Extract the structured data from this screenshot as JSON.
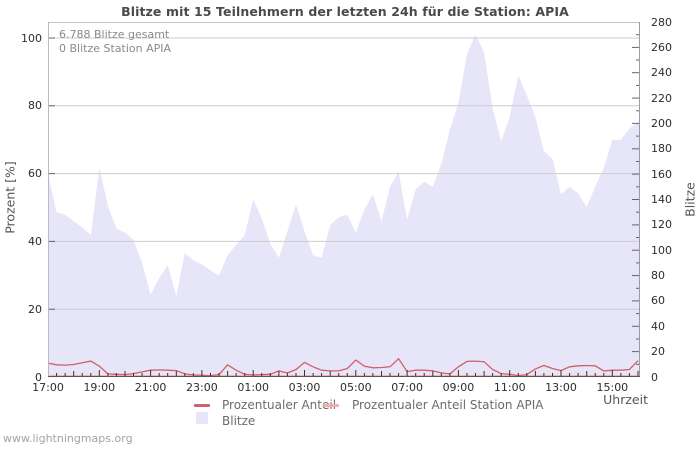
{
  "page": {
    "title": "Blitze mit 15 Teilnehmern der letzten 24h für die Station: APIA",
    "watermark": "www.lightningmaps.org"
  },
  "chart_data": {
    "type": "area",
    "title": "Blitze mit 15 Teilnehmern der letzten 24h für die Station: APIA",
    "annotations": [
      "6.788 Blitze gesamt",
      "0 Blitze Station APIA"
    ],
    "x_axis": {
      "label": "Uhrzeit",
      "start": "17:00",
      "interval_minutes": 20,
      "tick_labels": [
        "17:00",
        "19:00",
        "21:00",
        "23:00",
        "01:00",
        "03:00",
        "05:00",
        "07:00",
        "09:00",
        "11:00",
        "13:00",
        "15:00"
      ],
      "tick_hours_from_start": [
        0,
        2,
        4,
        6,
        8,
        10,
        12,
        14,
        16,
        18,
        20,
        22
      ]
    },
    "y_left": {
      "label": "Prozent  [%]",
      "min": 0,
      "max": 100,
      "ticks": [
        0,
        20,
        40,
        60,
        80,
        100
      ],
      "grid": true
    },
    "y_right": {
      "label": "Blitze",
      "min": 0,
      "max": 280,
      "ticks": [
        0,
        20,
        40,
        60,
        80,
        100,
        120,
        140,
        160,
        180,
        200,
        220,
        240,
        260,
        280
      ],
      "minor_step": 10
    },
    "area": {
      "name": "Blitze",
      "axis": "right",
      "color": "#e7e5f8",
      "values": [
        160,
        130,
        128,
        123,
        118,
        112,
        165,
        135,
        117,
        114,
        108,
        90,
        65,
        78,
        88,
        64,
        98,
        92,
        89,
        84,
        80,
        96,
        104,
        112,
        140,
        125,
        105,
        94,
        115,
        136,
        115,
        96,
        94,
        120,
        126,
        128,
        114,
        132,
        144,
        123,
        150,
        162,
        124,
        148,
        154,
        150,
        168,
        195,
        216,
        255,
        270,
        256,
        212,
        186,
        205,
        238,
        222,
        205,
        178,
        172,
        144,
        150,
        145,
        134,
        150,
        165,
        187,
        187,
        196,
        201
      ]
    },
    "series": [
      {
        "name": "Prozentualer Anteil",
        "axis": "left",
        "color": "#d25f6a",
        "values": [
          4.1,
          3.6,
          3.5,
          3.7,
          4.2,
          4.7,
          3.2,
          0.9,
          0.8,
          0.7,
          1.0,
          1.5,
          2.0,
          2.1,
          2.0,
          1.9,
          0.9,
          0.6,
          0.5,
          0.4,
          0.7,
          3.6,
          2.0,
          0.8,
          0.6,
          0.7,
          0.8,
          1.8,
          1.2,
          2.2,
          4.3,
          3.0,
          2.0,
          1.8,
          1.8,
          2.5,
          5.0,
          3.2,
          2.7,
          2.8,
          3.0,
          5.4,
          1.6,
          2.0,
          2.0,
          1.8,
          1.2,
          0.9,
          3.0,
          4.6,
          4.7,
          4.5,
          2.2,
          1.0,
          0.8,
          0.4,
          0.7,
          2.4,
          3.4,
          2.5,
          1.9,
          3.0,
          3.3,
          3.4,
          3.3,
          1.8,
          2.0,
          2.0,
          2.2,
          4.8
        ]
      },
      {
        "name": "Prozentualer Anteil Station APIA",
        "axis": "left",
        "color": "#f8a9a9",
        "values": [
          0,
          0,
          0,
          0,
          0,
          0,
          0,
          0,
          0,
          0,
          0,
          0,
          0,
          0,
          0,
          0,
          0,
          0,
          0,
          0,
          0,
          0,
          0,
          0,
          0,
          0,
          0,
          0,
          0,
          0,
          0,
          0,
          0,
          0,
          0,
          0,
          0,
          0,
          0,
          0,
          0,
          0,
          0,
          0,
          0,
          0,
          0,
          0,
          0,
          0,
          0,
          0,
          0,
          0,
          0,
          0,
          0,
          0,
          0,
          0,
          0,
          0,
          0,
          0,
          0,
          0,
          0,
          0,
          0,
          0
        ]
      }
    ],
    "legend": {
      "items": [
        {
          "label": "Prozentualer Anteil",
          "color": "#d25f6a",
          "swatch": "line"
        },
        {
          "label": "Prozentualer Anteil Station APIA",
          "color": "#f8a9a9",
          "swatch": "line"
        },
        {
          "label": "Blitze",
          "color": "#e7e5f8",
          "swatch": "box"
        }
      ]
    },
    "colors": {
      "grid": "#cdcdcd",
      "border_top": "#c4c4cf",
      "border_left": "#b9b9c9",
      "border_right": "#9a9aa8",
      "border_bottom": "#555555",
      "tick_x": "#333333",
      "tick_y": "#666666"
    }
  }
}
